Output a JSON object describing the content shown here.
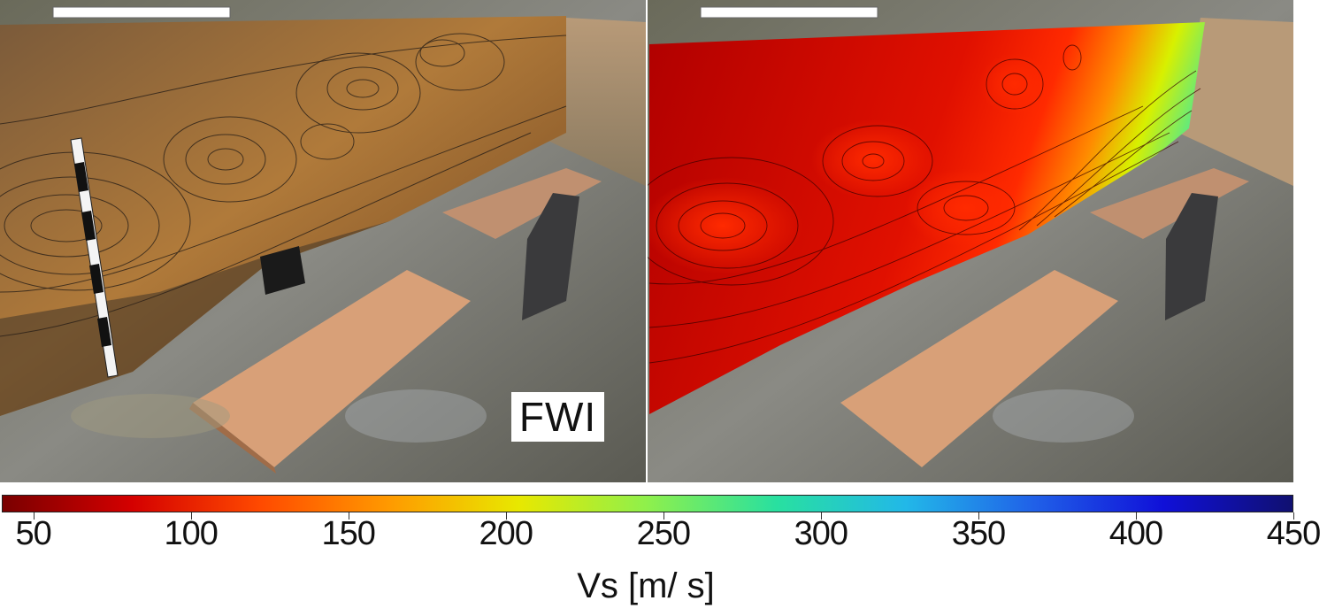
{
  "panel_label": "FWI",
  "colorbar": {
    "title": "Vs [m/ s]",
    "min": 40,
    "max": 450,
    "ticks": [
      "50",
      "100",
      "150",
      "200",
      "250",
      "300",
      "350",
      "400",
      "450"
    ],
    "colors": [
      "#7a0000",
      "#d40000",
      "#ff4a00",
      "#ff9a00",
      "#e8e800",
      "#8ef04c",
      "#28e0a0",
      "#22b8e8",
      "#2060e8",
      "#1010d8",
      "#101070"
    ]
  }
}
